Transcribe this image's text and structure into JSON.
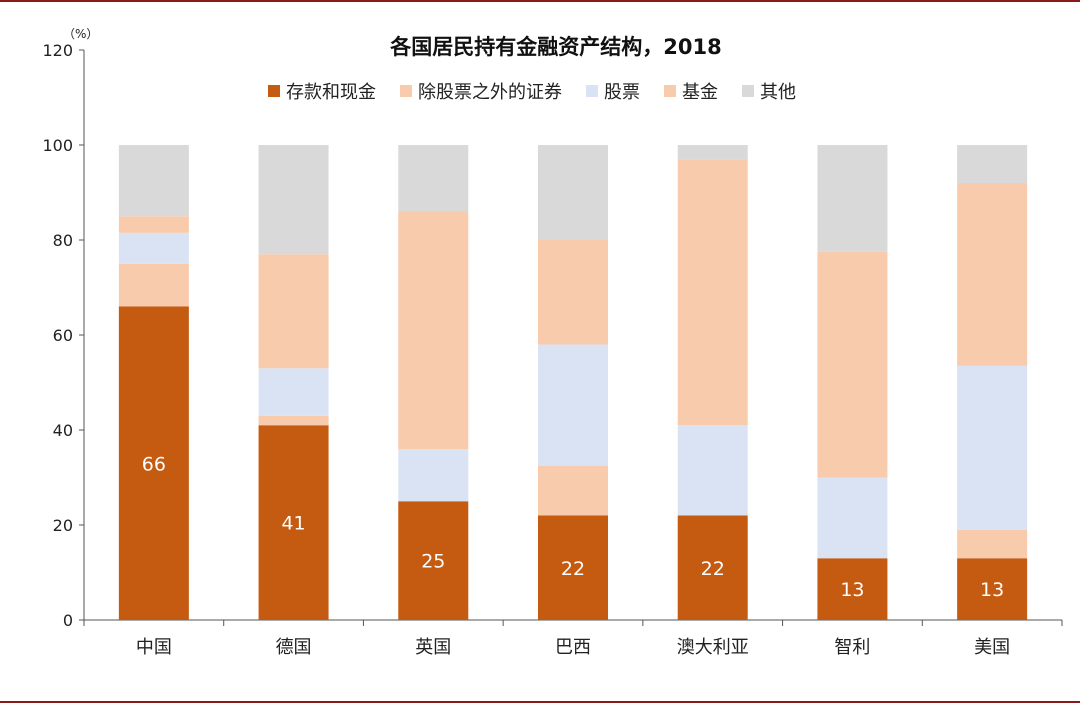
{
  "chart_data": {
    "type": "bar",
    "stacked": true,
    "title": "各国居民持有金融资产结构，2018",
    "ylabel": "（%）",
    "ylim": [
      0,
      120
    ],
    "yticks": [
      0,
      20,
      40,
      60,
      80,
      100,
      120
    ],
    "grid": false,
    "legend_position": "top",
    "categories": [
      "中国",
      "德国",
      "英国",
      "巴西",
      "澳大利亚",
      "智利",
      "美国"
    ],
    "series": [
      {
        "name": "存款和现金",
        "color": "#c55a11",
        "values": [
          66,
          41,
          25,
          22,
          22,
          13,
          13
        ]
      },
      {
        "name": "除股票之外的证券",
        "color": "#f8cbad",
        "values": [
          9,
          2,
          0,
          10.5,
          0,
          0,
          6
        ]
      },
      {
        "name": "股票",
        "color": "#dae3f3",
        "values": [
          6.5,
          10,
          11,
          25.5,
          19,
          17,
          34.5
        ]
      },
      {
        "name": "基金",
        "color": "#f8cbad",
        "values": [
          3.5,
          24,
          50,
          22,
          56,
          47.5,
          38.5
        ]
      },
      {
        "name": "其他",
        "color": "#d9d9d9",
        "values": [
          15,
          23,
          14,
          20,
          3,
          22.5,
          8
        ]
      }
    ],
    "data_labels": [
      "66",
      "41",
      "25",
      "22",
      "22",
      "13",
      "13"
    ]
  }
}
